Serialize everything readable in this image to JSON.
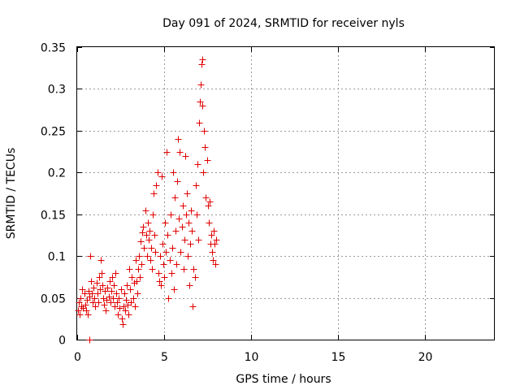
{
  "chart_data": {
    "type": "scatter",
    "title": "Day 091 of 2024, SRMTID for receiver nyls",
    "xlabel": "GPS time / hours",
    "ylabel": "SRMTID / TECUs",
    "xlim": [
      0,
      24
    ],
    "ylim": [
      0,
      0.35
    ],
    "xticks": [
      0,
      5,
      10,
      15,
      20
    ],
    "xtick_labels": [
      "0",
      "5",
      "10",
      "15",
      "20"
    ],
    "yticks": [
      0,
      0.05,
      0.1,
      0.15,
      0.2,
      0.25,
      0.3,
      0.35
    ],
    "ytick_labels": [
      "0",
      "0.05",
      "0.1",
      "0.15",
      "0.2",
      "0.25",
      "0.3",
      "0.35"
    ],
    "grid": true,
    "marker": "+",
    "series": [
      {
        "name": "nyls",
        "color": "#e00000",
        "points": [
          [
            0.05,
            0.035
          ],
          [
            0.1,
            0.045
          ],
          [
            0.15,
            0.03
          ],
          [
            0.2,
            0.05
          ],
          [
            0.25,
            0.04
          ],
          [
            0.3,
            0.06
          ],
          [
            0.35,
            0.038
          ],
          [
            0.4,
            0.055
          ],
          [
            0.45,
            0.042
          ],
          [
            0.5,
            0.035
          ],
          [
            0.55,
            0.048
          ],
          [
            0.6,
            0.03
          ],
          [
            0.65,
            0.058
          ],
          [
            0.7,
            0.052
          ],
          [
            0.72,
            0.0
          ],
          [
            0.75,
            0.1
          ],
          [
            0.8,
            0.07
          ],
          [
            0.85,
            0.055
          ],
          [
            0.9,
            0.045
          ],
          [
            0.95,
            0.062
          ],
          [
            1.0,
            0.05
          ],
          [
            1.05,
            0.04
          ],
          [
            1.1,
            0.068
          ],
          [
            1.15,
            0.055
          ],
          [
            1.2,
            0.045
          ],
          [
            1.25,
            0.075
          ],
          [
            1.3,
            0.06
          ],
          [
            1.35,
            0.095
          ],
          [
            1.4,
            0.08
          ],
          [
            1.45,
            0.065
          ],
          [
            1.5,
            0.05
          ],
          [
            1.55,
            0.042
          ],
          [
            1.6,
            0.058
          ],
          [
            1.65,
            0.035
          ],
          [
            1.7,
            0.048
          ],
          [
            1.75,
            0.062
          ],
          [
            1.8,
            0.052
          ],
          [
            1.85,
            0.07
          ],
          [
            1.9,
            0.045
          ],
          [
            1.95,
            0.058
          ],
          [
            2.0,
            0.075
          ],
          [
            2.05,
            0.05
          ],
          [
            2.1,
            0.065
          ],
          [
            2.15,
            0.04
          ],
          [
            2.2,
            0.08
          ],
          [
            2.25,
            0.055
          ],
          [
            2.3,
            0.045
          ],
          [
            2.35,
            0.03
          ],
          [
            2.4,
            0.05
          ],
          [
            2.45,
            0.038
          ],
          [
            2.5,
            0.06
          ],
          [
            2.55,
            0.025
          ],
          [
            2.6,
            0.018
          ],
          [
            2.65,
            0.04
          ],
          [
            2.7,
            0.055
          ],
          [
            2.75,
            0.035
          ],
          [
            2.8,
            0.048
          ],
          [
            2.85,
            0.065
          ],
          [
            2.9,
            0.042
          ],
          [
            2.95,
            0.03
          ],
          [
            3.0,
            0.085
          ],
          [
            3.05,
            0.06
          ],
          [
            3.1,
            0.045
          ],
          [
            3.15,
            0.075
          ],
          [
            3.2,
            0.05
          ],
          [
            3.25,
            0.068
          ],
          [
            3.3,
            0.04
          ],
          [
            3.35,
            0.095
          ],
          [
            3.4,
            0.07
          ],
          [
            3.45,
            0.055
          ],
          [
            3.5,
            0.085
          ],
          [
            3.55,
            0.1
          ],
          [
            3.6,
            0.075
          ],
          [
            3.65,
            0.118
          ],
          [
            3.7,
            0.09
          ],
          [
            3.75,
            0.128
          ],
          [
            3.8,
            0.135
          ],
          [
            3.85,
            0.11
          ],
          [
            3.9,
            0.155
          ],
          [
            3.95,
            0.125
          ],
          [
            4.0,
            0.1
          ],
          [
            4.05,
            0.14
          ],
          [
            4.1,
            0.12
          ],
          [
            4.15,
            0.13
          ],
          [
            4.2,
            0.095
          ],
          [
            4.25,
            0.11
          ],
          [
            4.3,
            0.085
          ],
          [
            4.35,
            0.15
          ],
          [
            4.4,
            0.175
          ],
          [
            4.45,
            0.125
          ],
          [
            4.5,
            0.105
          ],
          [
            4.55,
            0.185
          ],
          [
            4.6,
            0.2
          ],
          [
            4.65,
            0.08
          ],
          [
            4.7,
            0.07
          ],
          [
            4.75,
            0.1
          ],
          [
            4.8,
            0.065
          ],
          [
            4.85,
            0.195
          ],
          [
            4.9,
            0.115
          ],
          [
            4.95,
            0.09
          ],
          [
            5.0,
            0.075
          ],
          [
            5.05,
            0.14
          ],
          [
            5.1,
            0.105
          ],
          [
            5.15,
            0.225
          ],
          [
            5.2,
            0.125
          ],
          [
            5.25,
            0.05
          ],
          [
            5.3,
            0.095
          ],
          [
            5.35,
            0.15
          ],
          [
            5.4,
            0.08
          ],
          [
            5.45,
            0.11
          ],
          [
            5.5,
            0.2
          ],
          [
            5.55,
            0.06
          ],
          [
            5.6,
            0.17
          ],
          [
            5.65,
            0.13
          ],
          [
            5.7,
            0.09
          ],
          [
            5.75,
            0.19
          ],
          [
            5.8,
            0.24
          ],
          [
            5.85,
            0.145
          ],
          [
            5.9,
            0.225
          ],
          [
            5.95,
            0.105
          ],
          [
            6.0,
            0.135
          ],
          [
            6.05,
            0.16
          ],
          [
            6.1,
            0.085
          ],
          [
            6.15,
            0.12
          ],
          [
            6.2,
            0.22
          ],
          [
            6.25,
            0.15
          ],
          [
            6.3,
            0.175
          ],
          [
            6.35,
            0.1
          ],
          [
            6.4,
            0.14
          ],
          [
            6.45,
            0.065
          ],
          [
            6.5,
            0.115
          ],
          [
            6.55,
            0.155
          ],
          [
            6.6,
            0.13
          ],
          [
            6.65,
            0.04
          ],
          [
            6.7,
            0.085
          ],
          [
            6.75,
            0.075
          ],
          [
            6.8,
            0.185
          ],
          [
            6.85,
            0.15
          ],
          [
            6.9,
            0.21
          ],
          [
            6.95,
            0.12
          ],
          [
            7.0,
            0.26
          ],
          [
            7.05,
            0.285
          ],
          [
            7.1,
            0.305
          ],
          [
            7.15,
            0.33
          ],
          [
            7.18,
            0.335
          ],
          [
            7.2,
            0.28
          ],
          [
            7.25,
            0.2
          ],
          [
            7.3,
            0.25
          ],
          [
            7.35,
            0.23
          ],
          [
            7.4,
            0.17
          ],
          [
            7.45,
            0.215
          ],
          [
            7.5,
            0.16
          ],
          [
            7.55,
            0.14
          ],
          [
            7.6,
            0.165
          ],
          [
            7.65,
            0.115
          ],
          [
            7.7,
            0.125
          ],
          [
            7.75,
            0.105
          ],
          [
            7.8,
            0.095
          ],
          [
            7.85,
            0.13
          ],
          [
            7.9,
            0.115
          ],
          [
            7.95,
            0.09
          ],
          [
            8.0,
            0.12
          ]
        ]
      }
    ]
  }
}
